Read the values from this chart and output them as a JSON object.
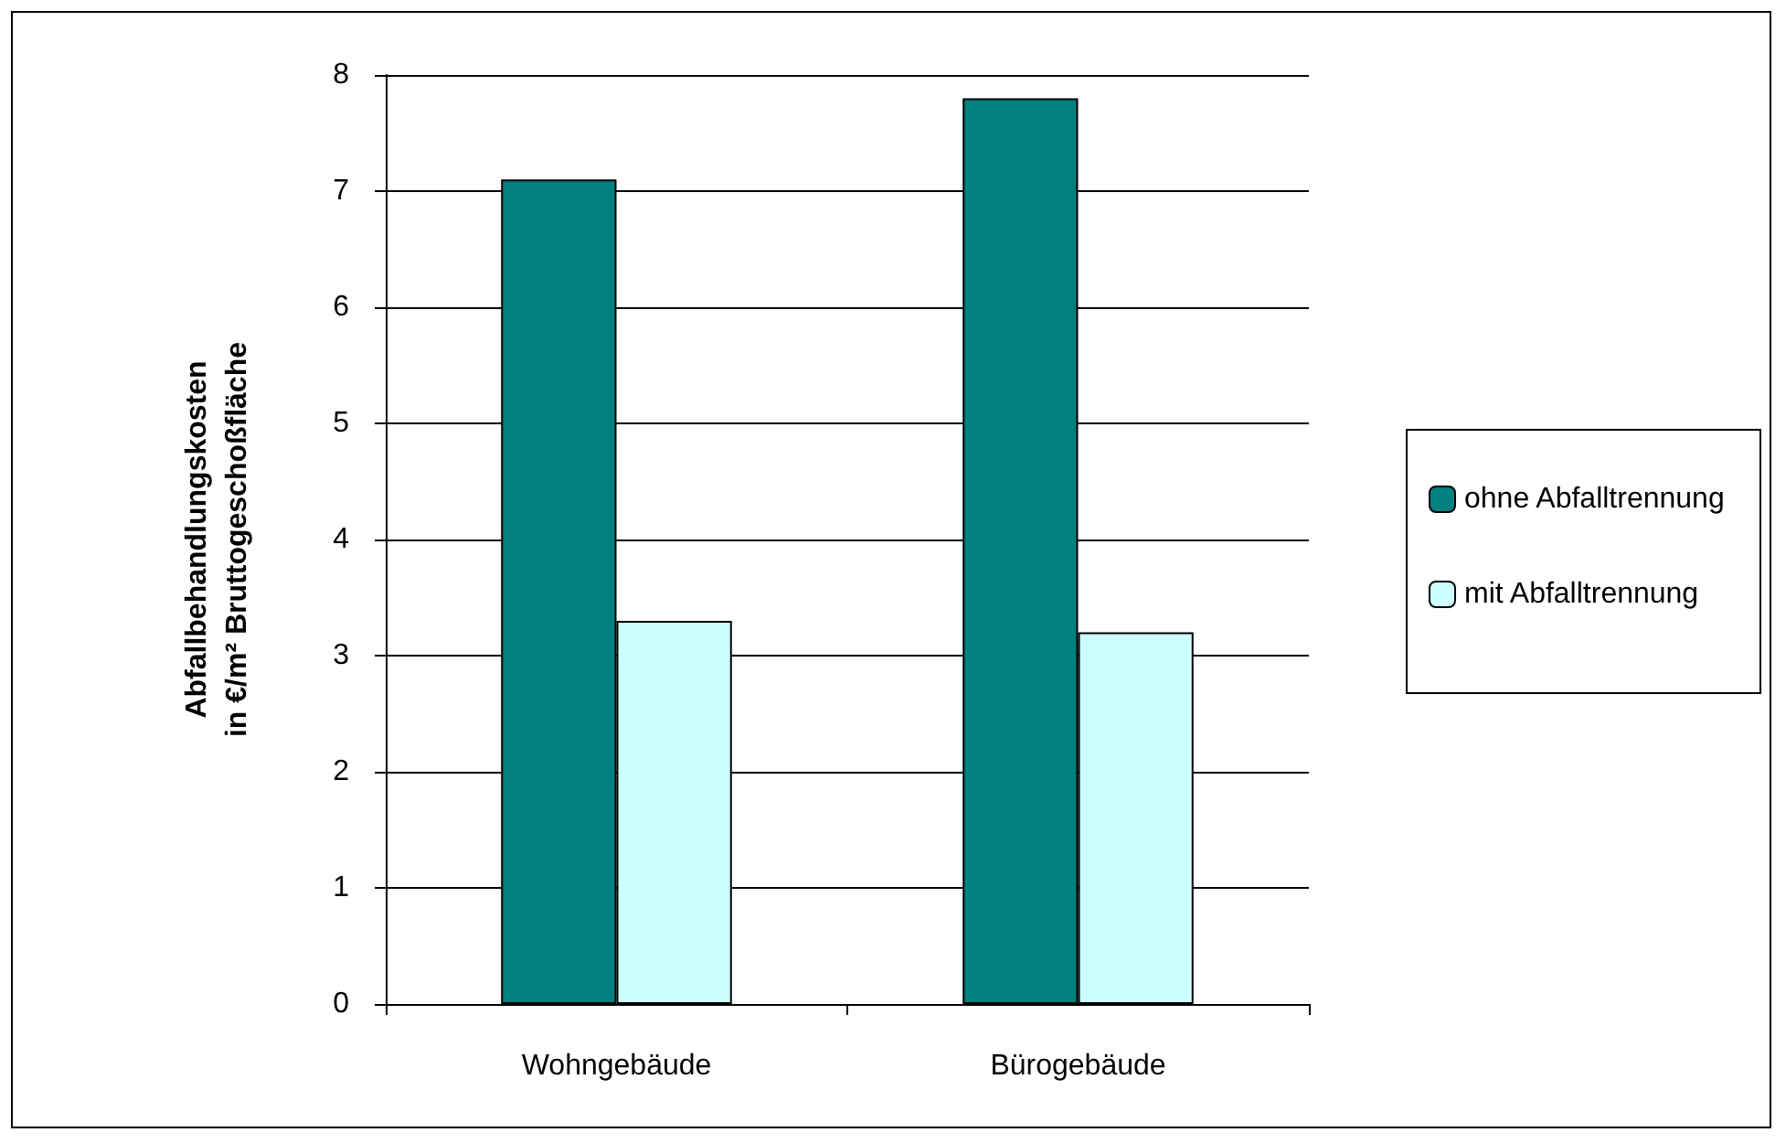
{
  "chart_data": {
    "type": "bar",
    "ylabel": "Abfallbehandlungskosten\nin €/m² Bruttogeschoßfläche",
    "categories": [
      "Wohngebäude",
      "Bürogebäude"
    ],
    "series": [
      {
        "name": "ohne Abfalltrennung",
        "color": "#008080",
        "values": [
          7.1,
          7.8
        ]
      },
      {
        "name": "mit Abfalltrennung",
        "color": "#ccffff",
        "values": [
          3.3,
          3.2
        ]
      }
    ],
    "ylim": [
      0,
      8
    ],
    "yticks": [
      0,
      1,
      2,
      3,
      4,
      5,
      6,
      7,
      8
    ],
    "grid": "y",
    "legend": "right"
  }
}
